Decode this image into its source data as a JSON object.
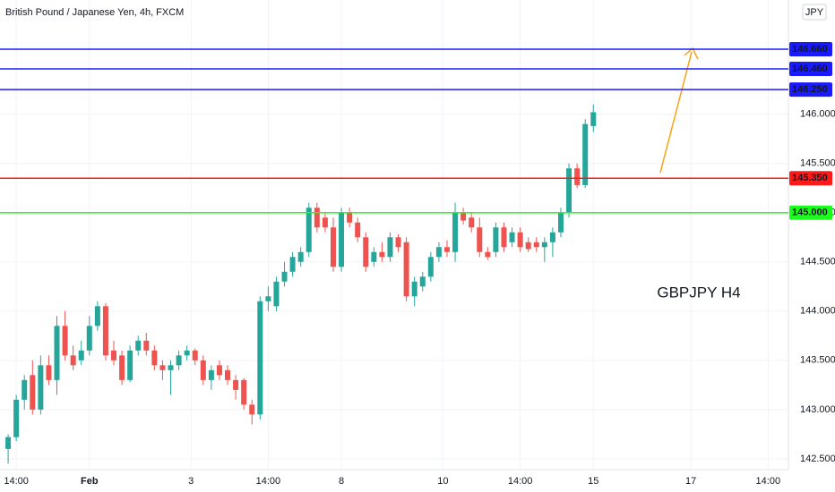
{
  "chart_data": {
    "type": "candlestick",
    "title": "British Pound / Japanese Yen, 4h, FXCM",
    "currency": "JPY",
    "annotation": "GBPJPY H4",
    "up_color": "#26a69a",
    "down_color": "#ef5350",
    "x": [
      0,
      1,
      2,
      3,
      4,
      5,
      6,
      7,
      8,
      9,
      10,
      11,
      12,
      13,
      14,
      15,
      16,
      17,
      18,
      19,
      20,
      21,
      22,
      23,
      24,
      25,
      26,
      27,
      28,
      29,
      30,
      31,
      32,
      33,
      34,
      35,
      36,
      37,
      38,
      39,
      40,
      41,
      42,
      43,
      44,
      45,
      46,
      47,
      48,
      49,
      50,
      51,
      52,
      53,
      54,
      55,
      56,
      57,
      58,
      59,
      60,
      61,
      62,
      63,
      64,
      65,
      66,
      67,
      68,
      69,
      70,
      71,
      72
    ],
    "open": [
      142.6,
      142.72,
      143.1,
      143.35,
      143.0,
      143.45,
      143.3,
      143.85,
      143.55,
      143.5,
      143.6,
      143.85,
      144.05,
      143.6,
      143.55,
      143.3,
      143.6,
      143.7,
      143.6,
      143.45,
      143.4,
      143.45,
      143.55,
      143.6,
      143.5,
      143.3,
      143.45,
      143.4,
      143.3,
      143.3,
      143.05,
      142.95,
      144.1,
      144.05,
      144.3,
      144.4,
      144.5,
      144.6,
      145.05,
      144.95,
      144.85,
      144.45,
      145.0,
      144.9,
      144.75,
      144.5,
      144.6,
      144.55,
      144.75,
      144.7,
      144.15,
      144.25,
      144.35,
      144.55,
      144.65,
      144.6,
      145.0,
      144.95,
      144.85,
      144.6,
      144.6,
      144.85,
      144.7,
      144.8,
      144.7,
      144.7,
      144.65,
      144.7,
      144.8,
      145.0,
      145.45,
      145.28,
      145.88
    ],
    "high": [
      142.75,
      143.15,
      143.35,
      143.5,
      143.55,
      143.55,
      143.95,
      144.0,
      143.65,
      143.7,
      143.95,
      144.1,
      144.08,
      143.7,
      143.6,
      143.65,
      143.75,
      143.78,
      143.65,
      143.5,
      143.5,
      143.6,
      143.65,
      143.62,
      143.55,
      143.45,
      143.5,
      143.45,
      143.35,
      143.32,
      143.1,
      144.15,
      144.25,
      144.35,
      144.5,
      144.6,
      144.65,
      145.1,
      145.1,
      145.0,
      144.95,
      145.05,
      145.05,
      144.95,
      144.8,
      144.65,
      144.7,
      144.8,
      144.78,
      144.75,
      144.35,
      144.4,
      144.6,
      144.7,
      144.72,
      145.1,
      145.05,
      145.0,
      144.95,
      144.65,
      144.9,
      144.9,
      144.85,
      144.85,
      144.75,
      144.75,
      144.75,
      144.85,
      145.05,
      145.5,
      145.5,
      145.95,
      146.1
    ],
    "low": [
      142.45,
      142.68,
      143.0,
      142.95,
      142.95,
      143.25,
      143.15,
      143.5,
      143.4,
      143.45,
      143.55,
      143.8,
      143.5,
      143.45,
      143.25,
      143.28,
      143.55,
      143.55,
      143.4,
      143.3,
      143.15,
      143.4,
      143.5,
      143.45,
      143.25,
      143.2,
      143.3,
      143.25,
      143.1,
      143.0,
      142.85,
      142.9,
      144.0,
      144.0,
      144.25,
      144.35,
      144.45,
      144.55,
      144.8,
      144.8,
      144.4,
      144.4,
      144.85,
      144.7,
      144.4,
      144.45,
      144.5,
      144.5,
      144.6,
      144.1,
      144.05,
      144.2,
      144.3,
      144.5,
      144.55,
      144.5,
      144.88,
      144.8,
      144.55,
      144.52,
      144.55,
      144.6,
      144.65,
      144.6,
      144.6,
      144.6,
      144.5,
      144.55,
      144.75,
      144.95,
      145.25,
      145.25,
      145.82
    ],
    "close": [
      142.72,
      143.1,
      143.3,
      143.0,
      143.45,
      143.3,
      143.85,
      143.55,
      143.45,
      143.6,
      143.85,
      144.05,
      143.55,
      143.5,
      143.3,
      143.6,
      143.7,
      143.6,
      143.45,
      143.4,
      143.45,
      143.55,
      143.6,
      143.5,
      143.3,
      143.4,
      143.35,
      143.3,
      143.2,
      143.05,
      142.95,
      144.1,
      144.15,
      144.3,
      144.4,
      144.55,
      144.6,
      145.05,
      144.85,
      144.85,
      144.45,
      145.0,
      144.9,
      144.75,
      144.45,
      144.6,
      144.55,
      144.75,
      144.65,
      144.15,
      144.3,
      144.35,
      144.55,
      144.65,
      144.6,
      145.0,
      144.92,
      144.85,
      144.6,
      144.55,
      144.85,
      144.65,
      144.8,
      144.65,
      144.63,
      144.65,
      144.7,
      144.8,
      145.0,
      145.45,
      145.28,
      145.9,
      146.02
    ],
    "levels": {
      "values": [
        146.66,
        146.46,
        146.25,
        145.35,
        145.0
      ],
      "value_labels": [
        "146.660",
        "146.460",
        "146.250",
        "145.350",
        "145.000"
      ],
      "colors": [
        "#1a1aff",
        "#1a1aff",
        "#1a1aff",
        "#ff1a1a",
        "#1aff1a"
      ]
    },
    "xlim": [
      -1,
      96
    ],
    "xticks": [
      {
        "value": 1,
        "label": "14:00"
      },
      {
        "value": 10,
        "label": "Feb"
      },
      {
        "value": 22.5,
        "label": "3"
      },
      {
        "value": 32,
        "label": "14:00"
      },
      {
        "value": 41,
        "label": "8"
      },
      {
        "value": 53.5,
        "label": "10"
      },
      {
        "value": 63,
        "label": "14:00"
      },
      {
        "value": 72,
        "label": "15"
      },
      {
        "value": 84,
        "label": "17"
      },
      {
        "value": 93.5,
        "label": "14:00"
      }
    ],
    "ylim": [
      142.39,
      147.16
    ],
    "yticks": [
      {
        "value": 142.5,
        "label": "142.500"
      },
      {
        "value": 143,
        "label": "143.000"
      },
      {
        "value": 143.5,
        "label": "143.500"
      },
      {
        "value": 144,
        "label": "144.000"
      },
      {
        "value": 144.5,
        "label": "144.500"
      },
      {
        "value": 145,
        "label": "145.000"
      },
      {
        "value": 145.5,
        "label": "145.500"
      },
      {
        "value": 146,
        "label": "146.000"
      }
    ],
    "grid": true
  }
}
